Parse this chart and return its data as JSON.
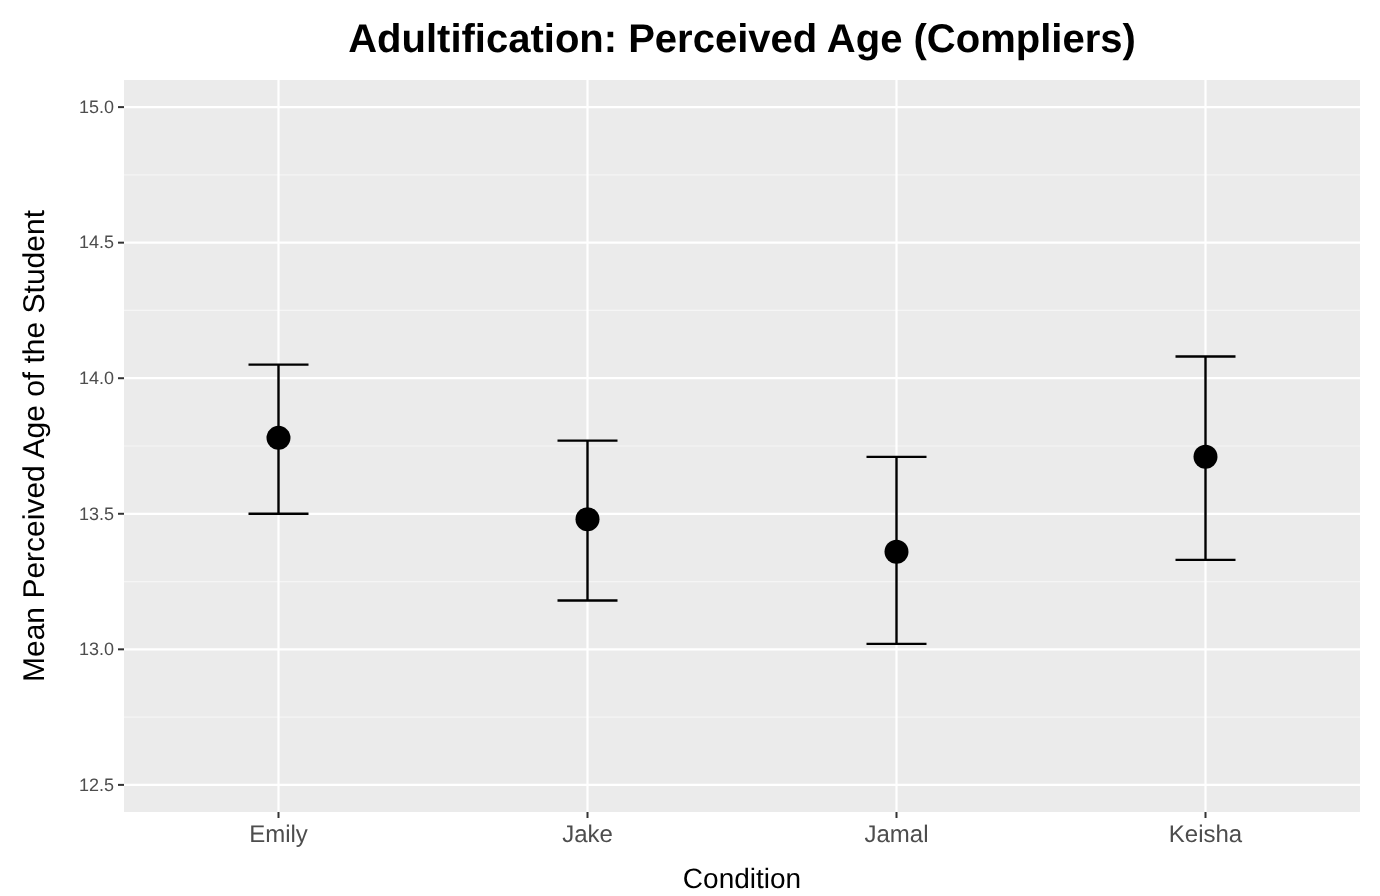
{
  "chart_data": {
    "type": "scatter",
    "title": "Adultification: Perceived Age (Compliers)",
    "xlabel": "Condition",
    "ylabel": "Mean Perceived Age of the Student",
    "categories": [
      "Emily",
      "Jake",
      "Jamal",
      "Keisha"
    ],
    "values": [
      13.78,
      13.48,
      13.36,
      13.71
    ],
    "errors": [
      [
        13.5,
        14.05
      ],
      [
        13.18,
        13.77
      ],
      [
        13.02,
        13.71
      ],
      [
        13.33,
        14.08
      ]
    ],
    "color": "#000000",
    "marker": "circle",
    "ylim": [
      12.4,
      15.1
    ],
    "yticks": [
      12.5,
      {
        "value": 13,
        "label": "13.0"
      },
      13.5,
      {
        "value": 14,
        "label": "14.0"
      },
      14.5,
      {
        "value": 15,
        "label": "15.0"
      }
    ],
    "grid": true
  }
}
